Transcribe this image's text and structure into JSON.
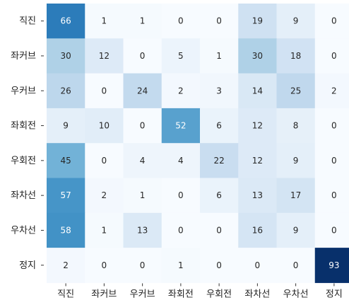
{
  "chart_data": {
    "type": "heatmap",
    "title": "",
    "xlabel": "",
    "ylabel": "",
    "row_labels": [
      "직진",
      "좌커브",
      "우커브",
      "좌회전",
      "우회전",
      "좌차선",
      "우차선",
      "정지"
    ],
    "col_labels": [
      "직진",
      "좌커브",
      "우커브",
      "좌회전",
      "우회전",
      "좌차선",
      "우차선",
      "정지"
    ],
    "values": [
      [
        66,
        1,
        1,
        0,
        0,
        19,
        9,
        0
      ],
      [
        30,
        12,
        0,
        5,
        1,
        30,
        18,
        0
      ],
      [
        26,
        0,
        24,
        2,
        3,
        14,
        25,
        2
      ],
      [
        9,
        10,
        0,
        52,
        6,
        12,
        8,
        0
      ],
      [
        45,
        0,
        4,
        4,
        22,
        12,
        9,
        0
      ],
      [
        57,
        2,
        1,
        0,
        6,
        13,
        17,
        0
      ],
      [
        58,
        1,
        13,
        0,
        0,
        16,
        9,
        0
      ],
      [
        2,
        0,
        0,
        1,
        0,
        0,
        0,
        93
      ]
    ],
    "vmin": 0,
    "vmax": 93,
    "colormap": "Blues",
    "grid": false,
    "legend": "none"
  }
}
